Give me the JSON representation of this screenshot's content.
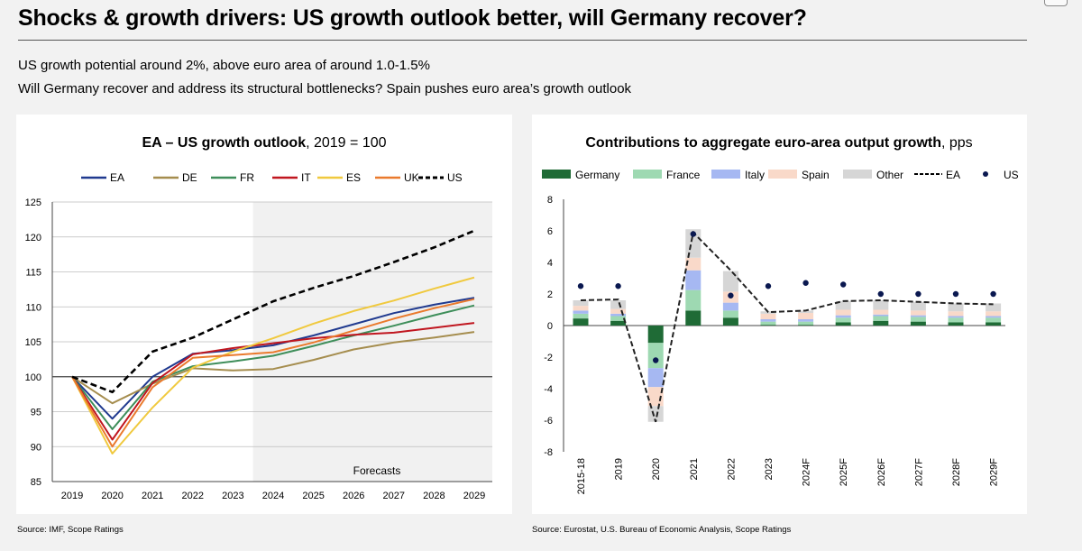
{
  "header": {
    "title": "Shocks & growth drivers: US growth outlook better, will Germany recover?",
    "subtitle1": "US growth potential around 2%, above euro area of around 1.0-1.5%",
    "subtitle2": "Will Germany recover and address its structural bottlenecks? Spain pushes euro area’s growth outlook"
  },
  "left_source": "Source: IMF, Scope Ratings",
  "right_source": "Source: Eurostat, U.S. Bureau of Economic Analysis, Scope Ratings",
  "chart_data": [
    {
      "type": "line",
      "title": "EA – US growth outlook",
      "title_suffix": ", 2019 = 100",
      "x": [
        "2019",
        "2020",
        "2021",
        "2022",
        "2023",
        "2024",
        "2025",
        "2026",
        "2027",
        "2028",
        "2029"
      ],
      "ylim": [
        85,
        125
      ],
      "yticks": [
        85,
        90,
        95,
        100,
        105,
        110,
        115,
        120,
        125
      ],
      "forecast_start": "2023.5",
      "forecast_label": "Forecasts",
      "legend_position": "top",
      "series": [
        {
          "name": "EA",
          "color": "#203a8f",
          "dash": false,
          "values": [
            100,
            94,
            100,
            103.3,
            103.8,
            104.5,
            105.9,
            107.5,
            109.1,
            110.3,
            111.3
          ]
        },
        {
          "name": "DE",
          "color": "#a58d4e",
          "dash": false,
          "values": [
            100,
            96.2,
            99,
            101.2,
            100.9,
            101.1,
            102.4,
            103.9,
            104.9,
            105.6,
            106.4
          ]
        },
        {
          "name": "FR",
          "color": "#3e8e5a",
          "dash": false,
          "values": [
            100,
            92.5,
            99.3,
            101.5,
            102.2,
            103,
            104.4,
            105.9,
            107.3,
            108.8,
            110.2
          ]
        },
        {
          "name": "IT",
          "color": "#c0161f",
          "dash": false,
          "values": [
            100,
            91,
            99.1,
            103.2,
            104.1,
            104.8,
            105.5,
            106,
            106.3,
            107,
            107.7
          ]
        },
        {
          "name": "ES",
          "color": "#f0c93e",
          "dash": false,
          "values": [
            100,
            89,
            95.6,
            101.3,
            103.6,
            105.5,
            107.6,
            109.4,
            110.9,
            112.6,
            114.2
          ]
        },
        {
          "name": "UK",
          "color": "#ea7a2d",
          "dash": false,
          "values": [
            100,
            90,
            98.5,
            102.7,
            103.1,
            103.5,
            104.9,
            106.6,
            108.3,
            109.8,
            111.1
          ]
        },
        {
          "name": "US",
          "color": "#000000",
          "dash": true,
          "values": [
            100,
            97.8,
            103.6,
            105.6,
            108.2,
            110.8,
            112.7,
            114.4,
            116.4,
            118.5,
            120.9
          ]
        }
      ]
    },
    {
      "type": "bar",
      "stacked": true,
      "title": "Contributions to aggregate euro-area output growth",
      "title_suffix": ", pps",
      "categories": [
        "2015-18",
        "2019",
        "2020",
        "2021",
        "2022",
        "2023",
        "2024F",
        "2025F",
        "2026F",
        "2027F",
        "2028F",
        "2029F"
      ],
      "ylim": [
        -8,
        8
      ],
      "yticks": [
        -8,
        -6,
        -4,
        -2,
        0,
        2,
        4,
        6,
        8
      ],
      "legend_position": "top",
      "series": [
        {
          "name": "Germany",
          "color": "#1f6b36",
          "values": [
            0.45,
            0.3,
            -1.1,
            0.95,
            0.5,
            0.05,
            0.05,
            0.2,
            0.3,
            0.25,
            0.2,
            0.2
          ]
        },
        {
          "name": "France",
          "color": "#9ed9b2",
          "values": [
            0.3,
            0.3,
            -1.6,
            1.3,
            0.45,
            0.2,
            0.2,
            0.3,
            0.3,
            0.3,
            0.3,
            0.3
          ]
        },
        {
          "name": "Italy",
          "color": "#a6b8f2",
          "values": [
            0.2,
            0.15,
            -1.2,
            1.25,
            0.5,
            0.15,
            0.15,
            0.15,
            0.1,
            0.1,
            0.1,
            0.1
          ]
        },
        {
          "name": "Spain",
          "color": "#f9d9c9",
          "values": [
            0.3,
            0.3,
            -1.2,
            0.8,
            0.7,
            0.35,
            0.4,
            0.35,
            0.3,
            0.3,
            0.3,
            0.3
          ]
        },
        {
          "name": "Other",
          "color": "#d6d6d6",
          "values": [
            0.35,
            0.55,
            -1.0,
            1.8,
            1.3,
            0.15,
            0.15,
            0.55,
            0.6,
            0.55,
            0.5,
            0.5
          ]
        }
      ],
      "ea_line": {
        "name": "EA",
        "values": [
          1.6,
          1.65,
          -6.1,
          5.9,
          3.5,
          0.85,
          0.95,
          1.55,
          1.6,
          1.5,
          1.4,
          1.35
        ]
      },
      "us_points": {
        "name": "US",
        "values": [
          2.5,
          2.5,
          -2.2,
          5.8,
          1.9,
          2.5,
          2.7,
          2.6,
          2.0,
          2.0,
          2.0,
          2.0
        ]
      }
    }
  ]
}
